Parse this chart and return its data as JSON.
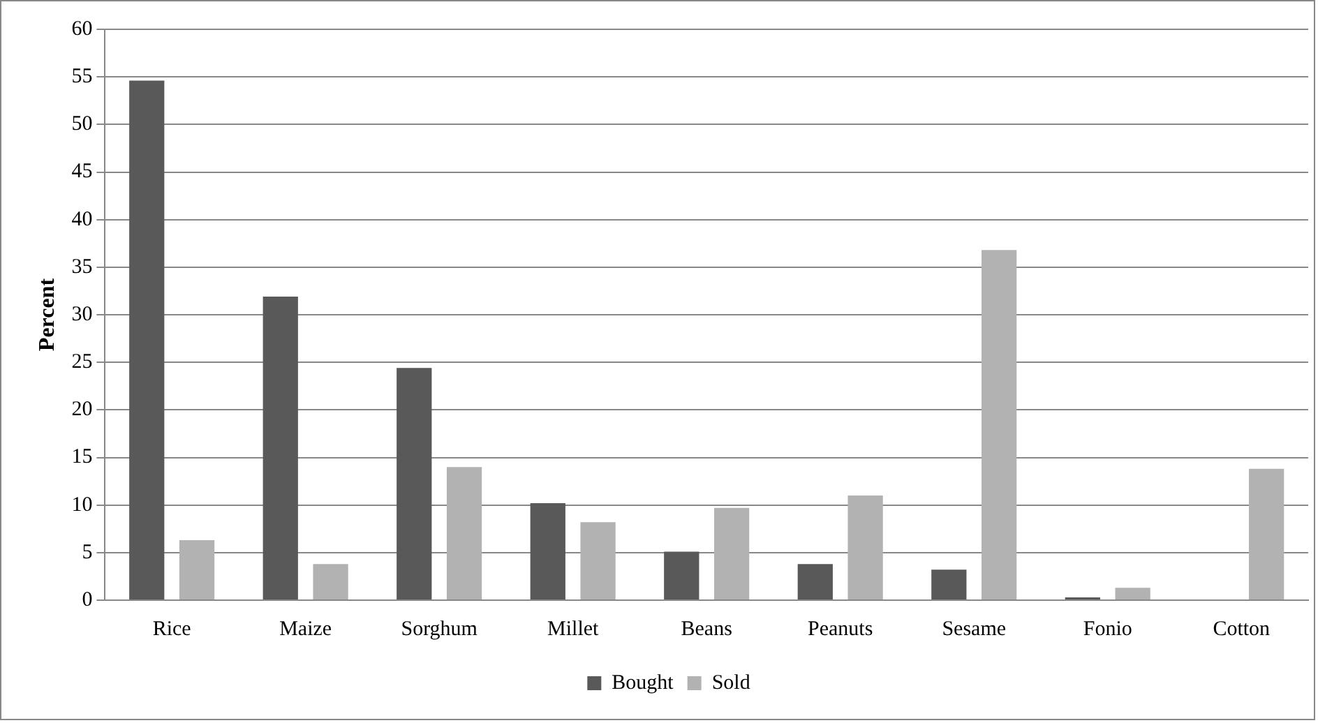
{
  "chart_data": {
    "type": "bar",
    "ylabel": "Percent",
    "categories": [
      "Rice",
      "Maize",
      "Sorghum",
      "Millet",
      "Beans",
      "Peanuts",
      "Sesame",
      "Fonio",
      "Cotton"
    ],
    "series": [
      {
        "name": "Bought",
        "color": "#595959",
        "values": [
          54.6,
          31.9,
          24.4,
          10.2,
          5.1,
          3.8,
          3.2,
          0.3,
          0
        ]
      },
      {
        "name": "Sold",
        "color": "#b2b2b2",
        "values": [
          6.3,
          3.8,
          14.0,
          8.2,
          9.7,
          11.0,
          36.8,
          1.3,
          13.8
        ]
      }
    ],
    "ylim": [
      0,
      60
    ],
    "yticks": [
      0,
      5,
      10,
      15,
      20,
      25,
      30,
      35,
      40,
      45,
      50,
      55,
      60
    ],
    "grid": "y",
    "legend": "bottom"
  }
}
